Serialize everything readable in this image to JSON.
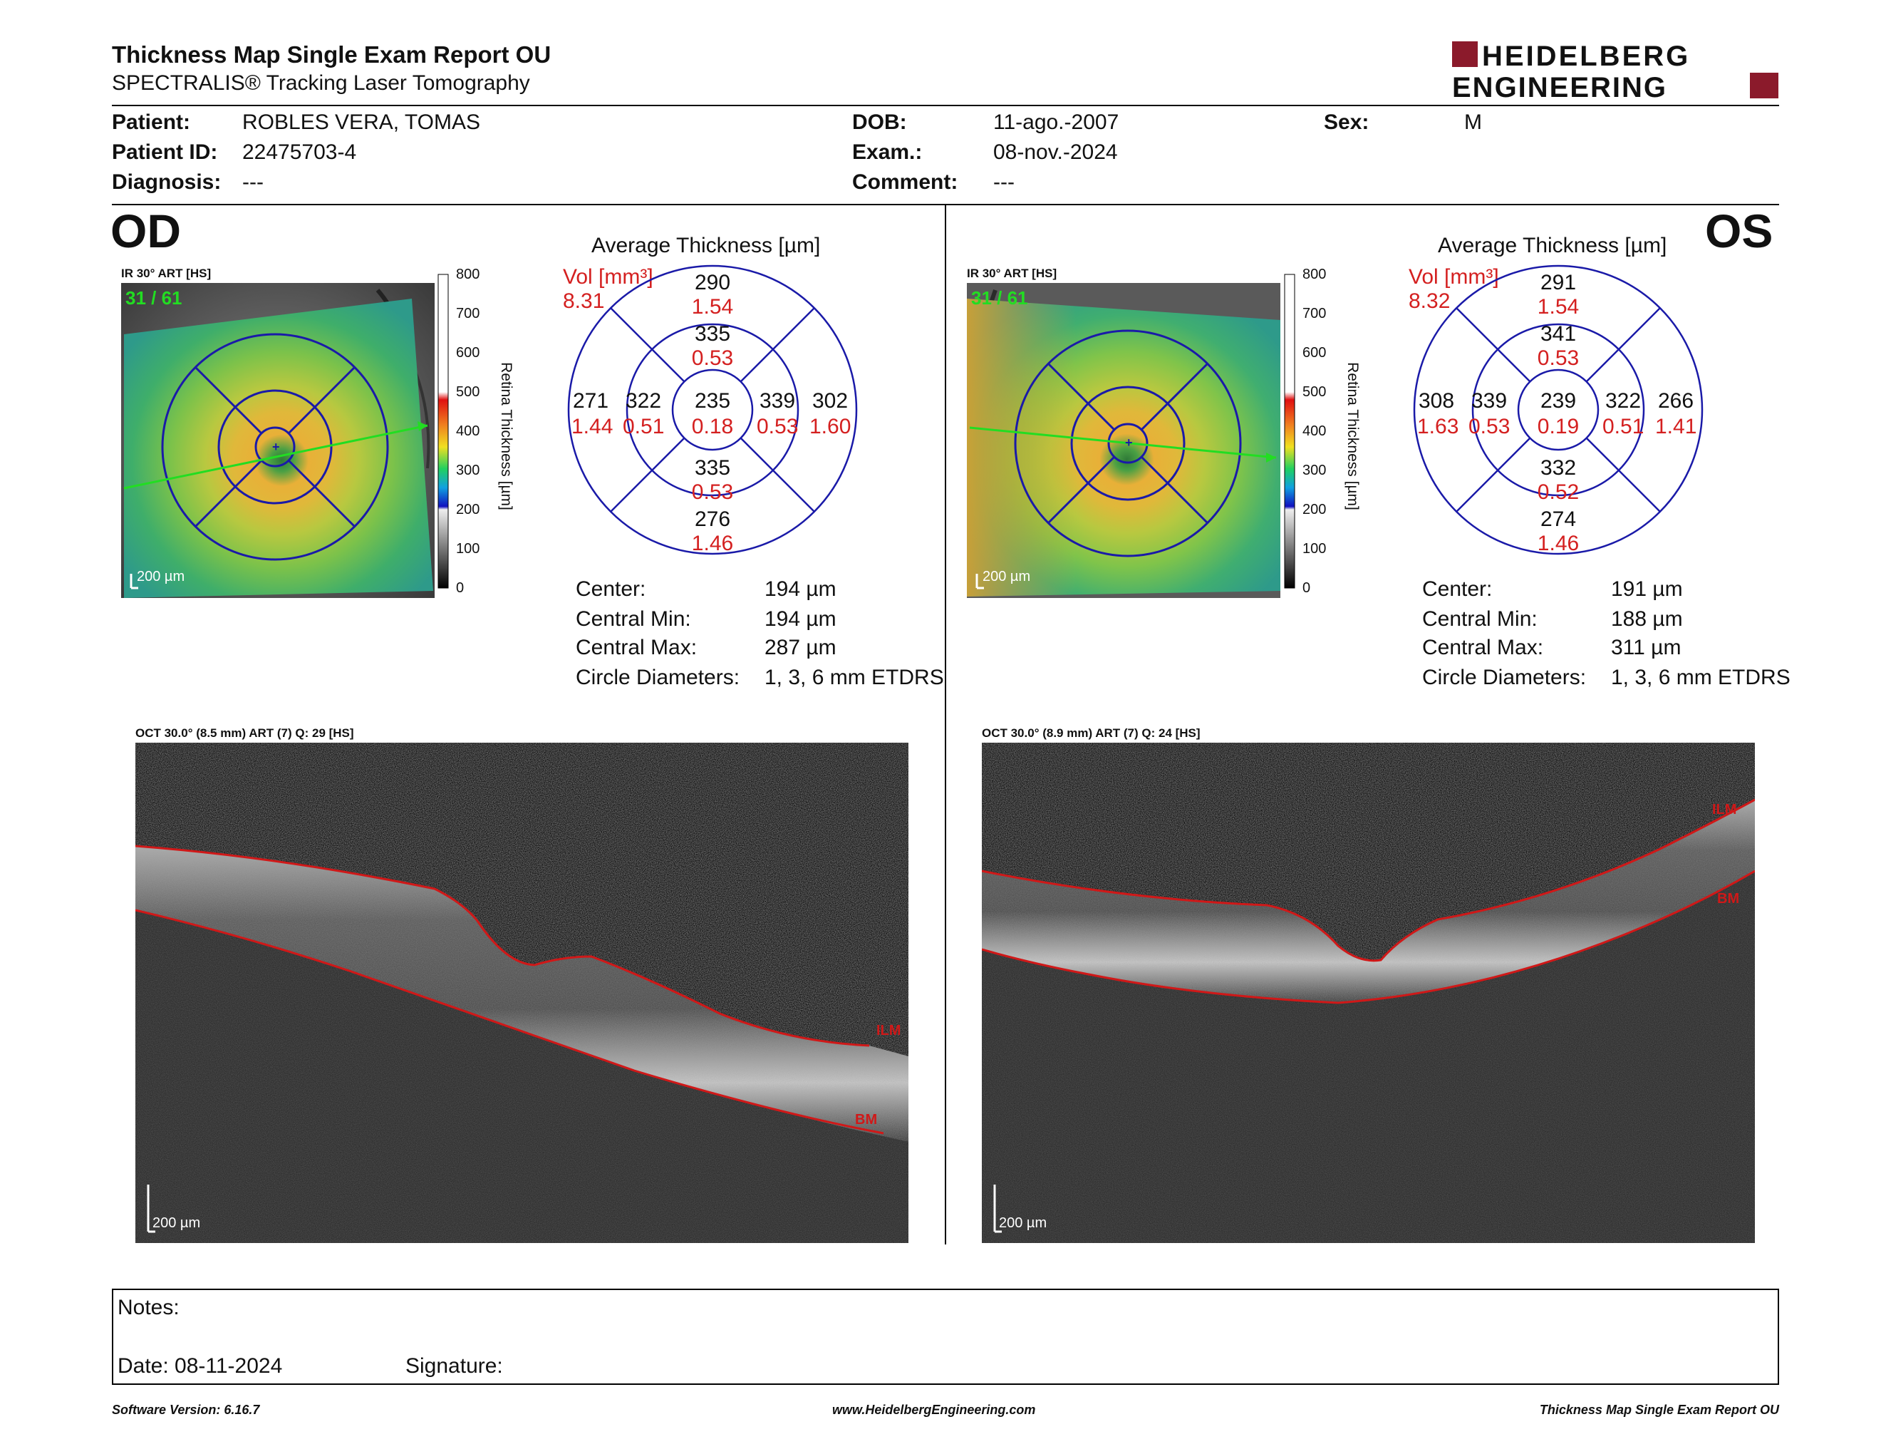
{
  "header": {
    "title": "Thickness Map Single Exam Report OU",
    "subtitle": "SPECTRALIS® Tracking Laser Tomography",
    "logo_line1": "HEIDELBERG",
    "logo_line2": "ENGINEERING"
  },
  "patient": {
    "patient_label": "Patient:",
    "patient_value": "ROBLES VERA, TOMAS",
    "id_label": "Patient ID:",
    "id_value": "22475703-4",
    "diagnosis_label": "Diagnosis:",
    "diagnosis_value": "---",
    "dob_label": "DOB:",
    "dob_value": "11-ago.-2007",
    "exam_label": "Exam.:",
    "exam_value": "08-nov.-2024",
    "comment_label": "Comment:",
    "comment_value": "---",
    "sex_label": "Sex:",
    "sex_value": "M"
  },
  "od": {
    "eye": "OD",
    "ir_label": "IR 30° ART [HS]",
    "frame_counter": "31 / 61",
    "scale_label": "200 µm",
    "avg_title": "Average Thickness [µm]",
    "vol_label": "Vol [mm³]",
    "vol_total": "8.31",
    "etdrs": {
      "outer_sup": "290",
      "outer_sup_vol": "1.54",
      "inner_sup": "335",
      "inner_sup_vol": "0.53",
      "outer_temp": "271",
      "outer_temp_vol": "1.44",
      "inner_temp": "322",
      "inner_temp_vol": "0.51",
      "center": "235",
      "center_vol": "0.18",
      "inner_nasal": "339",
      "inner_nasal_vol": "0.53",
      "outer_nasal": "302",
      "outer_nasal_vol": "1.60",
      "inner_inf": "335",
      "inner_inf_vol": "0.53",
      "outer_inf": "276",
      "outer_inf_vol": "1.46"
    },
    "stats": {
      "center_label": "Center:",
      "center_value": "194 µm",
      "min_label": "Central Min:",
      "min_value": "194 µm",
      "max_label": "Central Max:",
      "max_value": "287 µm",
      "diam_label": "Circle Diameters:",
      "diam_value": "1, 3, 6 mm ETDRS"
    },
    "oct_label": "OCT 30.0° (8.5 mm) ART (7) Q: 29 [HS]",
    "oct_ilm": "ILM",
    "oct_bm": "BM",
    "oct_scale": "200 µm"
  },
  "os": {
    "eye": "OS",
    "ir_label": "IR 30° ART [HS]",
    "frame_counter": "31 / 61",
    "scale_label": "200 µm",
    "avg_title": "Average Thickness [µm]",
    "vol_label": "Vol [mm³]",
    "vol_total": "8.32",
    "etdrs": {
      "outer_sup": "291",
      "outer_sup_vol": "1.54",
      "inner_sup": "341",
      "inner_sup_vol": "0.53",
      "outer_temp": "308",
      "outer_temp_vol": "1.63",
      "inner_temp": "339",
      "inner_temp_vol": "0.53",
      "center": "239",
      "center_vol": "0.19",
      "inner_nasal": "322",
      "inner_nasal_vol": "0.51",
      "outer_nasal": "266",
      "outer_nasal_vol": "1.41",
      "inner_inf": "332",
      "inner_inf_vol": "0.52",
      "outer_inf": "274",
      "outer_inf_vol": "1.46"
    },
    "stats": {
      "center_label": "Center:",
      "center_value": "191 µm",
      "min_label": "Central Min:",
      "min_value": "188 µm",
      "max_label": "Central Max:",
      "max_value": "311 µm",
      "diam_label": "Circle Diameters:",
      "diam_value": "1, 3, 6 mm ETDRS"
    },
    "oct_label": "OCT 30.0° (8.9 mm) ART (7) Q: 24 [HS]",
    "oct_ilm": "ILM",
    "oct_bm": "BM",
    "oct_scale": "200 µm"
  },
  "colorbar": {
    "title": "Retina Thickness [µm]",
    "ticks": [
      "800",
      "700",
      "600",
      "500",
      "400",
      "300",
      "200",
      "100",
      "0"
    ]
  },
  "notes": {
    "notes_label": "Notes:",
    "date_label": "Date: 08-11-2024",
    "signature_label": "Signature:"
  },
  "footer": {
    "software": "Software Version: 6.16.7",
    "website": "www.HeidelbergEngineering.com",
    "report": "Thickness Map Single Exam Report OU"
  },
  "colors": {
    "logo_red": "#8b1a2b",
    "vol_red": "#d42020",
    "etdrs_blue": "#1a1aa8",
    "ilm_red": "#d01818",
    "scan_green": "#22dd22"
  }
}
